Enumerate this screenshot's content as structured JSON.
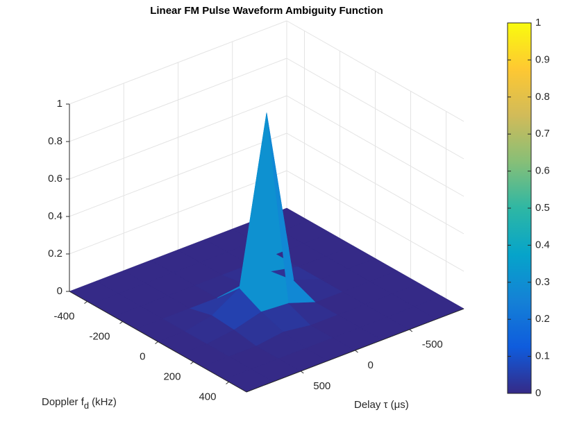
{
  "chart_data": {
    "type": "surface",
    "title": "Linear FM Pulse Waveform Ambiguity Function",
    "doppler_label": {
      "text": "Doppler f",
      "sub": "d",
      "unit": "(kHz)"
    },
    "delay_label": "Delay τ (μs)",
    "doppler": [
      -500,
      -375,
      -250,
      -125,
      0,
      125,
      250,
      375,
      500
    ],
    "delay": [
      -1000,
      -750,
      -500,
      -250,
      0,
      250,
      500,
      750,
      1000
    ],
    "z": [
      [
        0,
        0,
        0,
        0,
        0,
        0,
        0,
        0,
        0
      ],
      [
        0,
        0,
        0,
        0,
        0,
        0,
        0,
        0,
        0
      ],
      [
        0,
        0,
        0,
        0,
        0,
        0,
        0,
        0,
        0
      ],
      [
        0,
        0,
        0,
        0.03,
        0.02,
        0,
        0,
        0,
        0
      ],
      [
        0,
        0,
        0,
        0.05,
        1,
        0.12,
        0.03,
        0,
        0
      ],
      [
        0,
        0,
        0,
        0,
        0.05,
        0.06,
        0.02,
        0,
        0
      ],
      [
        0,
        0,
        0,
        0,
        0,
        0.02,
        0,
        0,
        0
      ],
      [
        0,
        0,
        0,
        0,
        0,
        0,
        0,
        0,
        0
      ],
      [
        0,
        0,
        0,
        0,
        0,
        0,
        0,
        0,
        0
      ]
    ],
    "dopplerlim": [
      -500,
      500
    ],
    "dopplerticks": [
      -400,
      -200,
      0,
      200,
      400
    ],
    "delaylim": [
      -1000,
      1000
    ],
    "delayticks": [
      -500,
      0,
      500
    ],
    "zlim": [
      0,
      1
    ],
    "zticks": [
      0,
      0.2,
      0.4,
      0.6,
      0.8,
      1
    ],
    "grid": true,
    "colormap": [
      "#352a87",
      "#0f5cdd",
      "#1481d6",
      "#06a4ca",
      "#2eb7a4",
      "#87bf77",
      "#d1bb59",
      "#fec832",
      "#f9fb0e"
    ],
    "clim": [
      0,
      1
    ],
    "colorbar_ticks": [
      0,
      0.1,
      0.2,
      0.3,
      0.4,
      0.5,
      0.6,
      0.7,
      0.8,
      0.9,
      1
    ]
  }
}
